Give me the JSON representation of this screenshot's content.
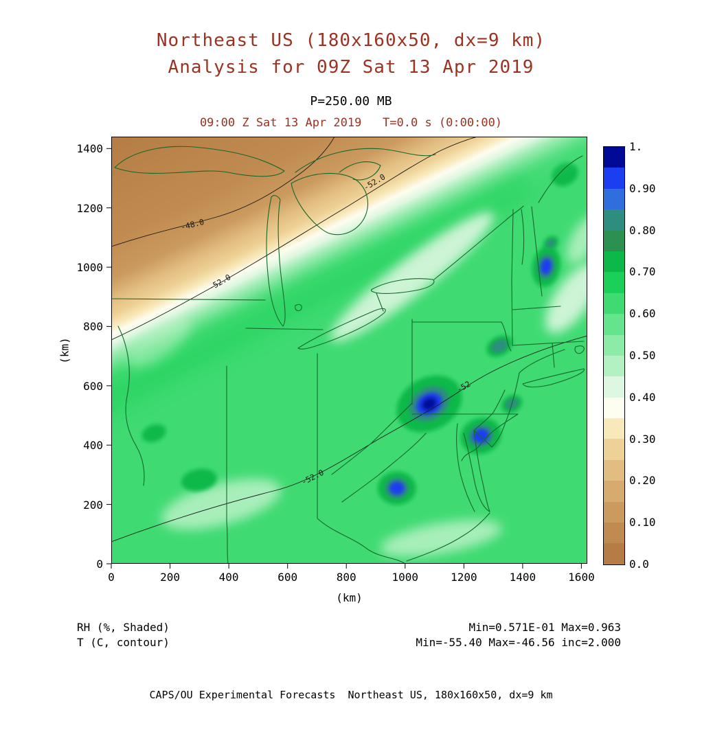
{
  "colors": {
    "title_text": "#9c3222",
    "state_outline": "#13682b",
    "contour_line": "#1a1a1a",
    "background": "#ffffff"
  },
  "header": {
    "title_line1": "Northeast US (180x160x50, dx=9 km)",
    "title_line2": "Analysis for 09Z Sat 13 Apr 2019"
  },
  "plot": {
    "level_label": "P=250.00 MB",
    "time_label": "09:00 Z Sat 13 Apr 2019   T=0.0 s (0:00:00)",
    "x_axis": {
      "label": "(km)"
    },
    "y_axis": {
      "label": "(km)"
    }
  },
  "annotations": {
    "shaded_field": "RH (%, Shaded)",
    "contour_field": "T (C, contour)",
    "shaded_stats": "Min=0.571E-01 Max=0.963",
    "contour_stats": "Min=-55.40 Max=-46.56 inc=2.000"
  },
  "footer": {
    "text": "CAPS/OU Experimental Forecasts  Northeast US, 180x160x50, dx=9 km"
  },
  "chart_data": {
    "type": "heatmap",
    "title": "Northeast US (180x160x50, dx=9 km) Analysis for 09Z Sat 13 Apr 2019",
    "level": "P=250.00 MB",
    "valid_time": "09:00 Z Sat 13 Apr 2019",
    "forecast_time": "T=0.0 s (0:00:00)",
    "region": "Northeast US",
    "shaded": {
      "variable": "RH",
      "units": "%",
      "min": 0.0571,
      "max": 0.963
    },
    "contoured": {
      "variable": "T",
      "units": "C",
      "min": -55.4,
      "max": -46.56,
      "interval": 2.0
    },
    "x_range_km": [
      0,
      1620
    ],
    "y_range_km": [
      0,
      1440
    ],
    "x_ticks": [
      0,
      200,
      400,
      600,
      800,
      1000,
      1200,
      1400,
      1600
    ],
    "y_ticks": [
      0,
      200,
      400,
      600,
      800,
      1000,
      1200,
      1400
    ],
    "xlabel": "(km)",
    "ylabel": "(km)",
    "colorscale": [
      {
        "from": 0.0,
        "to": 0.05,
        "color": "#b57d45"
      },
      {
        "from": 0.05,
        "to": 0.1,
        "color": "#c08b51"
      },
      {
        "from": 0.1,
        "to": 0.15,
        "color": "#cb9a5f"
      },
      {
        "from": 0.15,
        "to": 0.2,
        "color": "#d7ab6f"
      },
      {
        "from": 0.2,
        "to": 0.25,
        "color": "#e2bd81"
      },
      {
        "from": 0.25,
        "to": 0.3,
        "color": "#eed196"
      },
      {
        "from": 0.3,
        "to": 0.35,
        "color": "#f8e9bb"
      },
      {
        "from": 0.35,
        "to": 0.4,
        "color": "#fdfdf0"
      },
      {
        "from": 0.4,
        "to": 0.45,
        "color": "#ddf7e0"
      },
      {
        "from": 0.45,
        "to": 0.5,
        "color": "#b4f1c2"
      },
      {
        "from": 0.5,
        "to": 0.55,
        "color": "#8ceba6"
      },
      {
        "from": 0.55,
        "to": 0.6,
        "color": "#64e48c"
      },
      {
        "from": 0.6,
        "to": 0.65,
        "color": "#3fda72"
      },
      {
        "from": 0.65,
        "to": 0.7,
        "color": "#1ad058"
      },
      {
        "from": 0.7,
        "to": 0.75,
        "color": "#0cb948"
      },
      {
        "from": 0.75,
        "to": 0.8,
        "color": "#2c9150"
      },
      {
        "from": 0.8,
        "to": 0.85,
        "color": "#2d8d7f"
      },
      {
        "from": 0.85,
        "to": 0.9,
        "color": "#2e6fdd"
      },
      {
        "from": 0.9,
        "to": 0.95,
        "color": "#1a3ef0"
      },
      {
        "from": 0.95,
        "to": 1.0,
        "color": "#000a96"
      }
    ],
    "colorbar_ticks": [
      {
        "value": 1.0,
        "label": "1."
      },
      {
        "value": 0.9,
        "label": "0.90"
      },
      {
        "value": 0.8,
        "label": "0.80"
      },
      {
        "value": 0.7,
        "label": "0.70"
      },
      {
        "value": 0.6,
        "label": "0.60"
      },
      {
        "value": 0.5,
        "label": "0.50"
      },
      {
        "value": 0.4,
        "label": "0.40"
      },
      {
        "value": 0.3,
        "label": "0.30"
      },
      {
        "value": 0.2,
        "label": "0.20"
      },
      {
        "value": 0.1,
        "label": "0.10"
      },
      {
        "value": 0.0,
        "label": "0.0"
      }
    ],
    "contour_labels": [
      {
        "text": "-48.0",
        "x_km": 276,
        "y_km": 1144,
        "angle_deg": -14
      },
      {
        "text": "-52.0",
        "x_km": 369,
        "y_km": 949,
        "angle_deg": -30
      },
      {
        "text": "-52.0",
        "x_km": 895,
        "y_km": 1287,
        "angle_deg": -31
      },
      {
        "text": "-52.0",
        "x_km": 685,
        "y_km": 292,
        "angle_deg": -27
      },
      {
        "text": "-52",
        "x_km": 1199,
        "y_km": 597,
        "angle_deg": -30
      }
    ],
    "dry_boundary_km": [
      [
        0,
        790
      ],
      [
        1350,
        1440
      ]
    ],
    "moist_cores": [
      {
        "x_km": 1082,
        "y_km": 539,
        "peak": 0.97,
        "rx_km": 117,
        "ry_km": 88,
        "rot": -30
      },
      {
        "x_km": 1258,
        "y_km": 431,
        "peak": 0.92,
        "rx_km": 70,
        "ry_km": 60,
        "rot": -20
      },
      {
        "x_km": 972,
        "y_km": 255,
        "peak": 0.95,
        "rx_km": 65,
        "ry_km": 56,
        "rot": 0
      },
      {
        "x_km": 1480,
        "y_km": 1002,
        "peak": 0.93,
        "rx_km": 47,
        "ry_km": 69,
        "rot": 10
      },
      {
        "x_km": 1496,
        "y_km": 1081,
        "peak": 0.88,
        "rx_km": 28,
        "ry_km": 21,
        "rot": -40
      },
      {
        "x_km": 1363,
        "y_km": 539,
        "peak": 0.88,
        "rx_km": 37,
        "ry_km": 28,
        "rot": -30
      },
      {
        "x_km": 1321,
        "y_km": 734,
        "peak": 0.83,
        "rx_km": 47,
        "ry_km": 32,
        "rot": -30
      },
      {
        "x_km": 1543,
        "y_km": 1313,
        "peak": 0.8,
        "rx_km": 47,
        "ry_km": 37,
        "rot": -30
      },
      {
        "x_km": 299,
        "y_km": 282,
        "peak": 0.74,
        "rx_km": 61,
        "ry_km": 37,
        "rot": -10
      },
      {
        "x_km": 145,
        "y_km": 440,
        "peak": 0.72,
        "rx_km": 42,
        "ry_km": 28,
        "rot": -20
      }
    ],
    "dry_slots": [
      {
        "x_km": 1024,
        "y_km": 968,
        "rx_km": 350,
        "ry_km": 60,
        "rot": -38,
        "level": 0.44
      },
      {
        "x_km": 374,
        "y_km": 201,
        "rx_km": 210,
        "ry_km": 69,
        "rot": -15,
        "level": 0.48
      },
      {
        "x_km": 1571,
        "y_km": 896,
        "rx_km": 140,
        "ry_km": 58,
        "rot": -55,
        "level": 0.42
      },
      {
        "x_km": 1122,
        "y_km": 86,
        "rx_km": 210,
        "ry_km": 51,
        "rot": -10,
        "level": 0.47
      },
      {
        "x_km": 164,
        "y_km": 745,
        "rx_km": 128,
        "ry_km": 46,
        "rot": -35,
        "level": 0.52
      },
      {
        "x_km": 1608,
        "y_km": 1093,
        "rx_km": 93,
        "ry_km": 42,
        "rot": -60,
        "level": 0.45
      }
    ]
  }
}
